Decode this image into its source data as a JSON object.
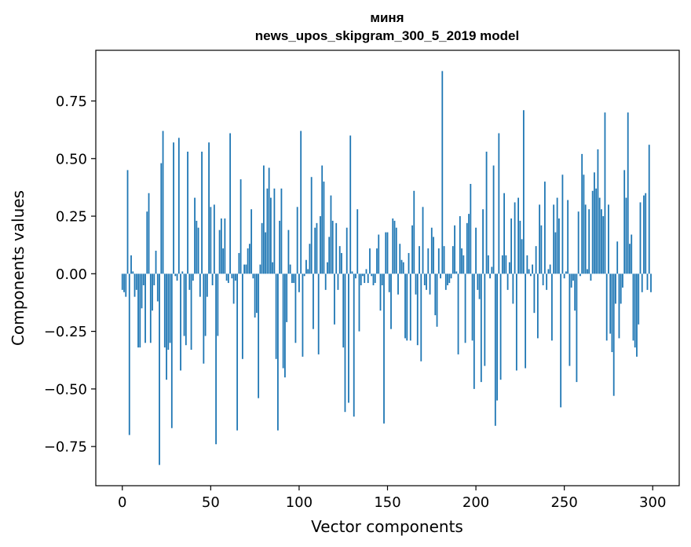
{
  "chart_data": {
    "type": "bar",
    "title": "миня",
    "subtitle": "news_upos_skipgram_300_5_2019 model",
    "xlabel": "Vector components",
    "ylabel": "Components values",
    "xlim": [
      -15,
      315
    ],
    "ylim": [
      -0.92,
      0.97
    ],
    "xticks": [
      0,
      50,
      100,
      150,
      200,
      250,
      300
    ],
    "xtick_labels": [
      "0",
      "50",
      "100",
      "150",
      "200",
      "250",
      "300"
    ],
    "yticks": [
      -0.75,
      -0.5,
      -0.25,
      0.0,
      0.25,
      0.5,
      0.75
    ],
    "ytick_labels": [
      "−0.75",
      "−0.50",
      "−0.25",
      "0.00",
      "0.25",
      "0.50",
      "0.75"
    ],
    "grid": false,
    "bar_color": "#1f77b4",
    "series": [
      {
        "x_start": 0,
        "values": [
          -0.07,
          -0.08,
          -0.1,
          0.45,
          -0.7,
          0.08,
          0.01,
          -0.1,
          -0.07,
          -0.32,
          -0.32,
          -0.15,
          -0.05,
          -0.3,
          0.27,
          0.35,
          -0.3,
          -0.16,
          -0.05,
          0.1,
          -0.12,
          -0.83,
          0.48,
          0.62,
          -0.32,
          -0.46,
          -0.33,
          -0.3,
          -0.67,
          0.57,
          -0.01,
          -0.03,
          0.59,
          -0.42,
          0.01,
          -0.27,
          -0.31,
          0.53,
          -0.07,
          -0.33,
          -0.03,
          0.33,
          0.23,
          0.2,
          -0.1,
          0.53,
          -0.39,
          -0.27,
          -0.1,
          0.57,
          0.29,
          -0.05,
          0.3,
          -0.74,
          -0.27,
          0.19,
          0.24,
          0.11,
          0.24,
          -0.03,
          -0.04,
          0.61,
          -0.02,
          -0.13,
          -0.03,
          -0.68,
          0.09,
          0.41,
          -0.37,
          0.04,
          0.04,
          0.11,
          0.13,
          0.28,
          -0.02,
          -0.19,
          -0.17,
          -0.54,
          0.04,
          0.22,
          0.47,
          0.18,
          0.37,
          0.46,
          0.33,
          0.05,
          0.37,
          -0.37,
          -0.68,
          0.23,
          0.37,
          -0.41,
          -0.45,
          -0.21,
          0.19,
          0.04,
          -0.04,
          -0.04,
          -0.3,
          0.29,
          -0.08,
          0.62,
          -0.36,
          -0.01,
          0.06,
          0.02,
          0.13,
          0.42,
          -0.24,
          0.2,
          0.22,
          -0.35,
          0.25,
          0.47,
          0.4,
          -0.07,
          0.05,
          0.16,
          0.34,
          0.23,
          -0.22,
          0.22,
          -0.07,
          0.12,
          0.09,
          -0.32,
          -0.6,
          0.2,
          -0.56,
          0.6,
          0.01,
          -0.62,
          -0.02,
          0.28,
          -0.25,
          -0.05,
          -0.01,
          -0.04,
          0.02,
          -0.04,
          0.11,
          -0.01,
          -0.05,
          -0.04,
          0.11,
          0.17,
          -0.16,
          -0.05,
          -0.65,
          0.18,
          0.18,
          -0.08,
          -0.24,
          0.24,
          0.23,
          0.2,
          -0.09,
          0.13,
          0.06,
          0.05,
          -0.28,
          -0.29,
          0.09,
          -0.29,
          0.21,
          0.36,
          -0.09,
          -0.31,
          0.12,
          -0.38,
          0.29,
          -0.05,
          -0.07,
          0.11,
          -0.09,
          0.2,
          0.16,
          -0.18,
          -0.23,
          0.11,
          -0.02,
          0.88,
          0.12,
          -0.07,
          -0.05,
          -0.04,
          -0.02,
          0.12,
          0.21,
          0.01,
          -0.35,
          0.25,
          0.11,
          0.08,
          -0.3,
          0.22,
          0.26,
          0.39,
          -0.29,
          -0.5,
          0.2,
          -0.07,
          -0.11,
          -0.47,
          0.28,
          -0.4,
          0.53,
          0.08,
          -0.02,
          0.03,
          0.47,
          -0.66,
          -0.55,
          0.61,
          -0.46,
          0.08,
          0.35,
          0.08,
          -0.07,
          0.05,
          0.24,
          -0.13,
          0.31,
          -0.42,
          0.33,
          0.23,
          0.15,
          0.71,
          -0.41,
          0.08,
          0.02,
          -0.01,
          0.04,
          -0.17,
          0.12,
          -0.28,
          0.3,
          0.21,
          -0.05,
          0.4,
          -0.07,
          0.02,
          0.04,
          -0.29,
          0.3,
          0.18,
          0.33,
          0.24,
          -0.58,
          0.43,
          -0.02,
          0.01,
          0.32,
          -0.4,
          -0.06,
          -0.03,
          -0.16,
          -0.47,
          0.27,
          -0.01,
          0.52,
          0.43,
          0.3,
          0.02,
          0.28,
          -0.03,
          0.36,
          0.44,
          0.37,
          0.54,
          0.33,
          0.28,
          0.25,
          0.7,
          -0.29,
          0.3,
          -0.26,
          -0.34,
          -0.53,
          -0.13,
          0.14,
          -0.28,
          -0.13,
          -0.06,
          0.45,
          0.33,
          0.7,
          0.13,
          0.17,
          -0.29,
          -0.32,
          -0.36,
          -0.22,
          0.31,
          -0.08,
          0.34,
          0.35,
          -0.07,
          0.56,
          -0.08
        ]
      }
    ]
  }
}
